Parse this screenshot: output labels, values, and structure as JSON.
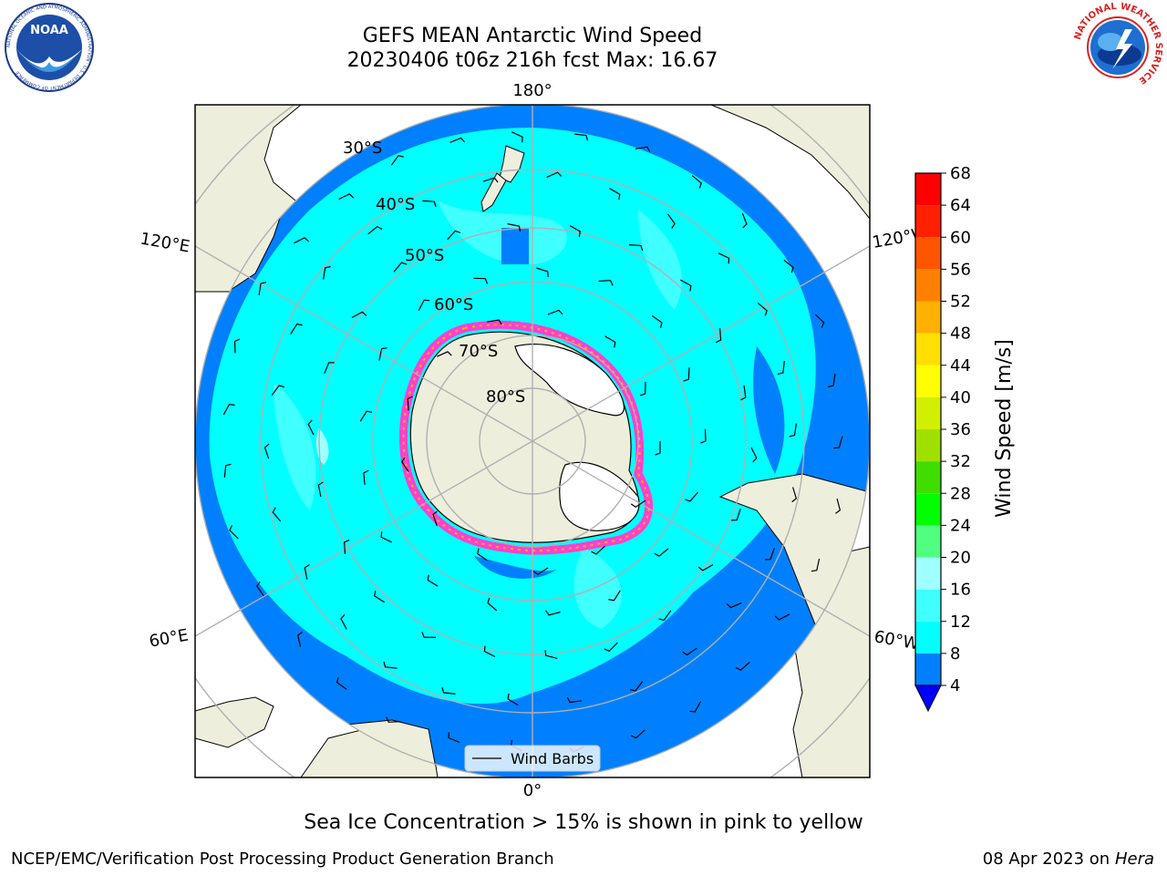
{
  "title": {
    "line1": "GEFS MEAN Antarctic Wind Speed",
    "line2": "20230406 t06z 216h fcst   Max: 16.67"
  },
  "logos": {
    "left": {
      "text": "NOAA",
      "ring_text": "NATIONAL OCEANIC AND ATMOSPHERIC ADMINISTRATION · U.S. DEPARTMENT OF COMMERCE",
      "icon": "noaa-logo"
    },
    "right": {
      "ring_text": "NATIONAL WEATHER SERVICE",
      "icon": "nws-logo"
    }
  },
  "map": {
    "projection": "south-polar-stereographic",
    "lon_labels": [
      "180°",
      "120°E",
      "120°W",
      "60°E",
      "60°W",
      "0°"
    ],
    "lat_labels": [
      "30°S",
      "40°S",
      "50°S",
      "60°S",
      "70°S",
      "80°S"
    ],
    "legend_label": "Wind Barbs",
    "colors": {
      "land": "#eeeedd",
      "ice_sheet": "#ffffff",
      "grid": "#b0b0b0"
    }
  },
  "colorbar": {
    "label": "Wind Speed [m/s]",
    "ticks": [
      "4",
      "8",
      "12",
      "16",
      "20",
      "24",
      "28",
      "32",
      "36",
      "40",
      "44",
      "48",
      "52",
      "56",
      "60",
      "64",
      "68"
    ],
    "colors": [
      "#0080ff",
      "#00ffff",
      "#40ffff",
      "#a0ffff",
      "#50ff80",
      "#00ff00",
      "#40dd00",
      "#a0e000",
      "#d0f000",
      "#ffff00",
      "#ffe000",
      "#ffb000",
      "#ff8000",
      "#ff5500",
      "#ff2000",
      "#ff0000"
    ],
    "under_color": "#0000ff"
  },
  "note": "Sea Ice Concentration > 15% is shown in pink to yellow",
  "footer": {
    "credit": "NCEP/EMC/Verification Post Processing Product Generation Branch",
    "date": "08 Apr 2023 on",
    "machine": "Hera"
  }
}
